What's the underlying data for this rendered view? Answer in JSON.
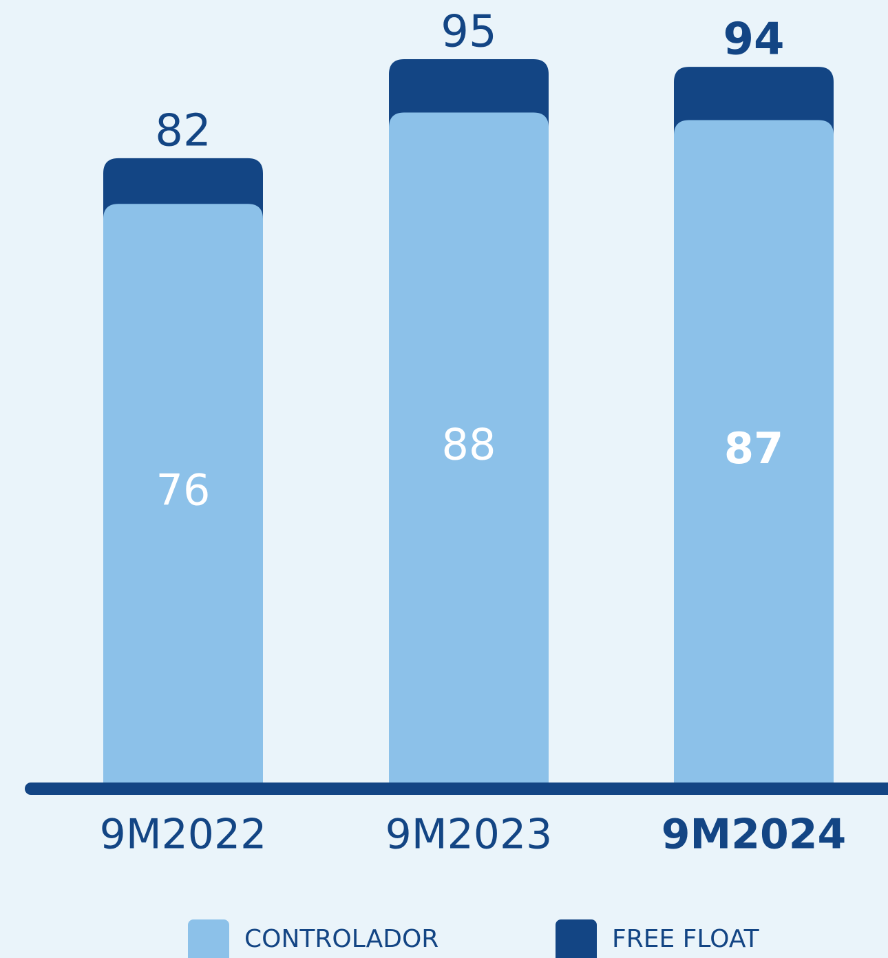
{
  "chart_data": {
    "type": "stacked-bar",
    "categories": [
      "9M2022",
      "9M2023",
      "9M2024"
    ],
    "series": [
      {
        "name": "CONTROLADOR",
        "color": "#8cc1e9",
        "values": [
          76,
          88,
          87
        ]
      },
      {
        "name": "FREE FLOAT",
        "color": "#134584",
        "values": [
          6,
          7,
          7
        ]
      }
    ],
    "totals": [
      82,
      95,
      94
    ]
  }
}
